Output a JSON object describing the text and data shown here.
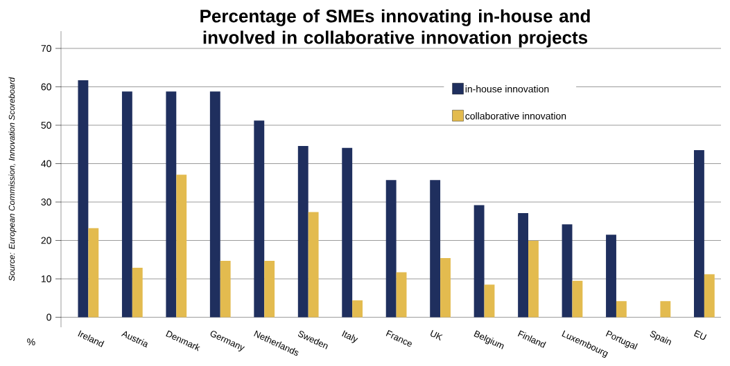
{
  "chart_data": {
    "type": "bar",
    "title": "Percentage of SMEs innovating in-house and involved in collaborative innovation projects",
    "ylabel": "%",
    "annotations": [
      "Source: European Commission, Innovation Scoreboard"
    ],
    "categories": [
      "Ireland",
      "Austria",
      "Denmark",
      "Germany",
      "Netherlands",
      "Sweden",
      "Italy",
      "France",
      "UK",
      "Belgium",
      "Finland",
      "Luxembourg",
      "Portugal",
      "Spain",
      "EU"
    ],
    "series": [
      {
        "name": "in-house innovation",
        "color": "#1f2f5e",
        "values": [
          61.7,
          58.8,
          58.8,
          58.8,
          51.2,
          44.6,
          44.1,
          35.7,
          35.7,
          29.2,
          27.1,
          24.2,
          21.5,
          null,
          43.5
        ]
      },
      {
        "name": "collaborative innovation",
        "color": "#e3bb4f",
        "values": [
          23.2,
          12.9,
          37.1,
          14.7,
          14.7,
          27.4,
          4.4,
          11.7,
          15.4,
          8.5,
          19.9,
          9.5,
          4.2,
          4.2,
          11.2
        ]
      }
    ],
    "ylim": [
      -2.6,
      74.5
    ],
    "yticks": [
      0,
      10,
      20,
      30,
      40,
      50,
      60,
      70
    ],
    "grid": "y",
    "legend": "top right"
  }
}
